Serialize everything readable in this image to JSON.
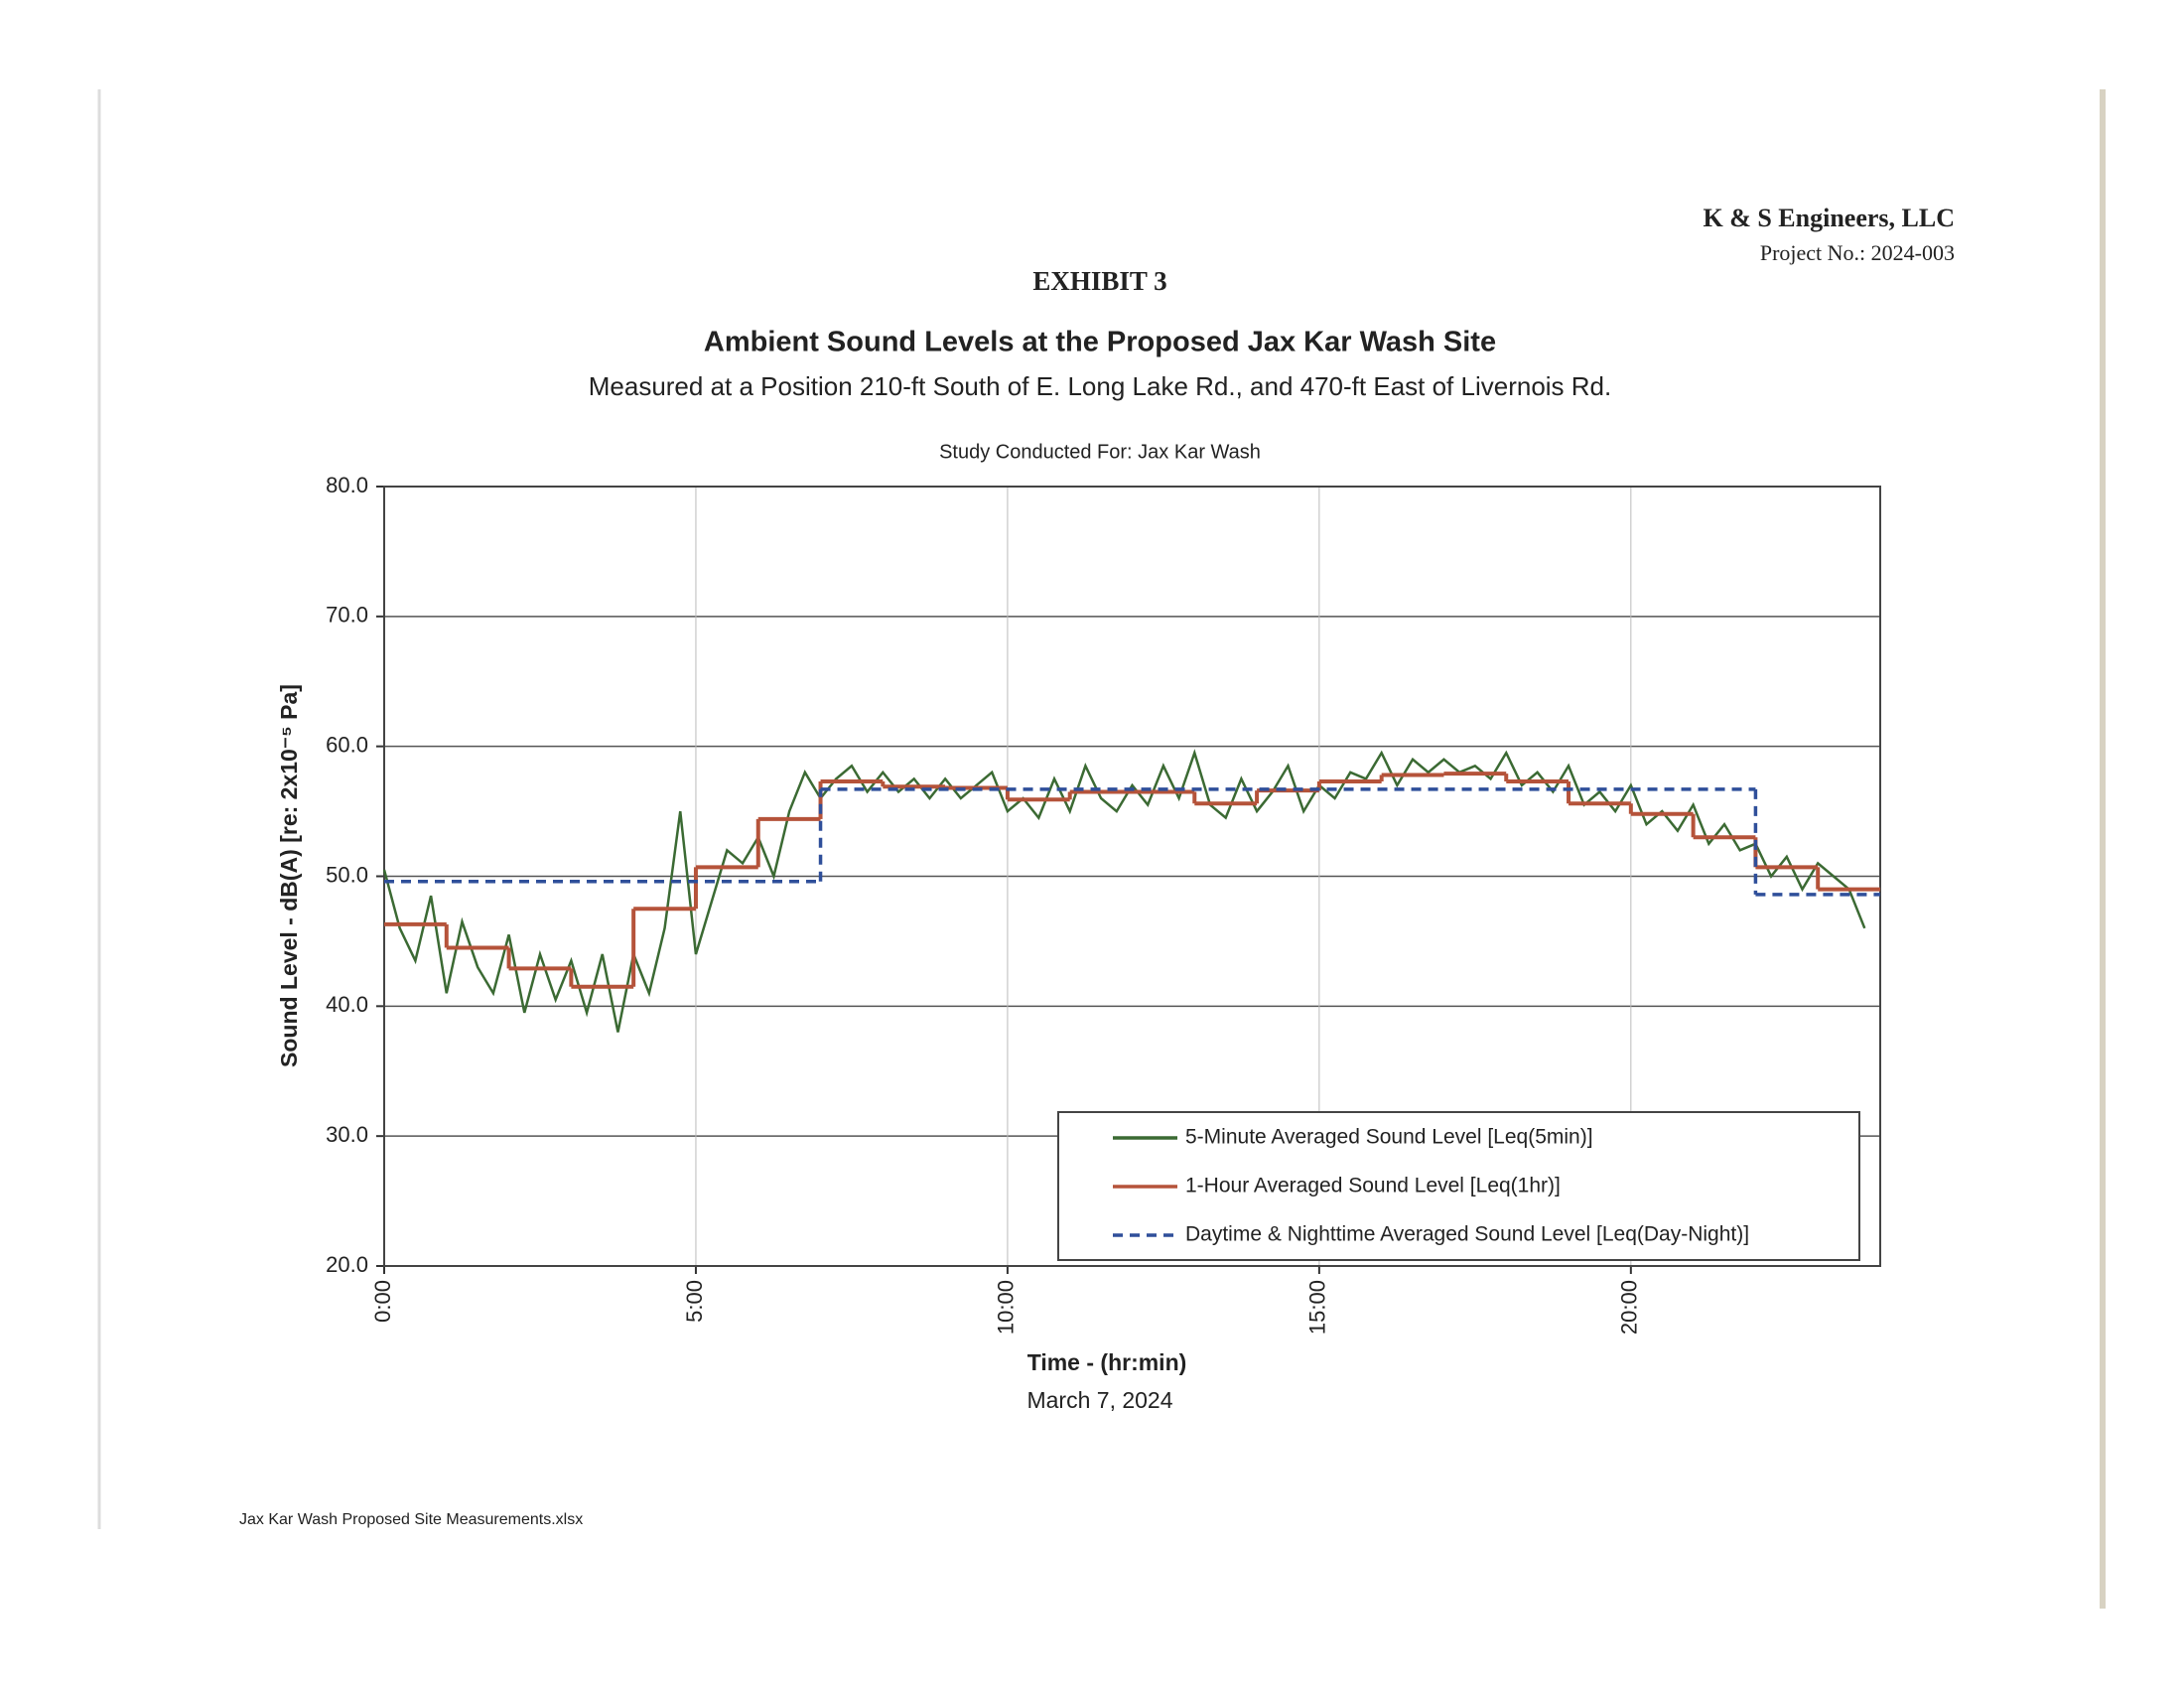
{
  "header": {
    "company": "K & S Engineers, LLC",
    "project": "Project No.: 2024-003",
    "exhibit": "EXHIBIT 3"
  },
  "chart_data": {
    "type": "line",
    "title": "Ambient Sound Levels at the Proposed Jax Kar Wash Site",
    "subtitle": "Measured at a Position 210-ft South of E. Long Lake Rd., and 470-ft East of Livernois Rd.",
    "note": "Study Conducted For: Jax Kar Wash",
    "x_label": "Time - (hr:min)",
    "x_sublabel": "March 7, 2024",
    "y_label": "Sound Level - dB(A) [re: 2x10⁻⁵ Pa]",
    "xlim": [
      0,
      24
    ],
    "xticks": [
      {
        "value": 0,
        "label": "0:00"
      },
      {
        "value": 5,
        "label": "5:00"
      },
      {
        "value": 10,
        "label": "10:00"
      },
      {
        "value": 15,
        "label": "15:00"
      },
      {
        "value": 20,
        "label": "20:00"
      }
    ],
    "ylim": [
      20,
      80
    ],
    "yticks": [
      {
        "value": 20,
        "label": "20.0"
      },
      {
        "value": 30,
        "label": "30.0"
      },
      {
        "value": 40,
        "label": "40.0"
      },
      {
        "value": 50,
        "label": "50.0"
      },
      {
        "value": 60,
        "label": "60.0"
      },
      {
        "value": 70,
        "label": "70.0"
      },
      {
        "value": 80,
        "label": "80.0"
      }
    ],
    "grid": true,
    "legend": "lower right",
    "series": [
      {
        "name": "5-Minute Averaged Sound Level [Leq(5min)]",
        "color": "#3b6a33",
        "x": [
          0,
          0.25,
          0.5,
          0.75,
          1,
          1.25,
          1.5,
          1.75,
          2,
          2.25,
          2.5,
          2.75,
          3,
          3.25,
          3.5,
          3.75,
          4,
          4.25,
          4.5,
          4.75,
          5,
          5.25,
          5.5,
          5.75,
          6,
          6.25,
          6.5,
          6.75,
          7,
          7.25,
          7.5,
          7.75,
          8,
          8.25,
          8.5,
          8.75,
          9,
          9.25,
          9.5,
          9.75,
          10,
          10.25,
          10.5,
          10.75,
          11,
          11.25,
          11.5,
          11.75,
          12,
          12.25,
          12.5,
          12.75,
          13,
          13.25,
          13.5,
          13.75,
          14,
          14.25,
          14.5,
          14.75,
          15,
          15.25,
          15.5,
          15.75,
          16,
          16.25,
          16.5,
          16.75,
          17,
          17.25,
          17.5,
          17.75,
          18,
          18.25,
          18.5,
          18.75,
          19,
          19.25,
          19.5,
          19.75,
          20,
          20.25,
          20.5,
          20.75,
          21,
          21.25,
          21.5,
          21.75,
          22,
          22.25,
          22.5,
          22.75,
          23,
          23.25,
          23.5,
          23.75
        ],
        "values": [
          50.5,
          46,
          43.5,
          48.5,
          41,
          46.5,
          43,
          41,
          45.5,
          39.5,
          44,
          40.5,
          43.5,
          39.5,
          44,
          38,
          44,
          41,
          46,
          55,
          44,
          48,
          52,
          51,
          53,
          50,
          55,
          58,
          56,
          57.5,
          58.5,
          56.5,
          58,
          56.5,
          57.5,
          56,
          57.5,
          56,
          57,
          58,
          55,
          56,
          54.5,
          57.5,
          55,
          58.5,
          56,
          55,
          57,
          55.5,
          58.5,
          56,
          59.5,
          55.5,
          54.5,
          57.5,
          55,
          56.5,
          58.5,
          55,
          57,
          56,
          58,
          57.5,
          59.5,
          57,
          59,
          58,
          59,
          58,
          58.5,
          57.5,
          59.5,
          57,
          58,
          56.5,
          58.5,
          55.5,
          56.5,
          55,
          57,
          54,
          55,
          53.5,
          55.5,
          52.5,
          54,
          52,
          52.5,
          50,
          51.5,
          49,
          51,
          50,
          49,
          46
        ]
      },
      {
        "name": "1-Hour Averaged Sound Level [Leq(1hr)]",
        "color": "#b5533a",
        "step": "post",
        "x": [
          0,
          1,
          2,
          3,
          4,
          5,
          6,
          7,
          8,
          9,
          10,
          11,
          12,
          13,
          14,
          15,
          16,
          17,
          18,
          19,
          20,
          21,
          22,
          23
        ],
        "values": [
          46.3,
          44.5,
          42.9,
          41.5,
          47.5,
          50.7,
          54.4,
          57.3,
          56.9,
          56.8,
          55.9,
          56.5,
          56.5,
          55.6,
          56.6,
          57.3,
          57.8,
          57.9,
          57.3,
          55.6,
          54.8,
          53.0,
          50.7,
          49.0
        ]
      },
      {
        "name": "Daytime & Nighttime Averaged Sound Level [Leq(Day-Night)]",
        "color": "#2f4f9a",
        "step": "post",
        "dashed": true,
        "x": [
          0,
          7,
          22
        ],
        "values": [
          49.6,
          56.7,
          48.6
        ]
      }
    ]
  },
  "footer": "Jax Kar Wash Proposed Site Measurements.xlsx"
}
